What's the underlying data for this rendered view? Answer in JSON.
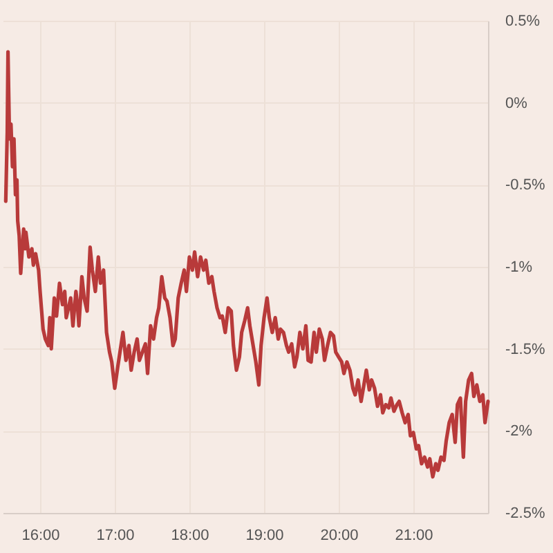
{
  "chart_data": {
    "type": "line",
    "x": [
      15.54,
      15.56,
      15.57,
      15.59,
      15.61,
      15.63,
      15.65,
      15.67,
      15.69,
      15.7,
      15.72,
      15.74,
      15.78,
      15.8,
      15.81,
      15.85,
      15.89,
      15.91,
      15.94,
      15.98,
      16.0,
      16.04,
      16.07,
      16.11,
      16.13,
      16.15,
      16.19,
      16.22,
      16.26,
      16.3,
      16.33,
      16.35,
      16.39,
      16.41,
      16.44,
      16.48,
      16.5,
      16.52,
      16.56,
      16.59,
      16.63,
      16.67,
      16.7,
      16.74,
      16.78,
      16.81,
      16.85,
      16.89,
      16.93,
      16.96,
      17.0,
      17.04,
      17.07,
      17.11,
      17.15,
      17.19,
      17.22,
      17.26,
      17.3,
      17.33,
      17.37,
      17.41,
      17.44,
      17.48,
      17.52,
      17.56,
      17.59,
      17.63,
      17.67,
      17.7,
      17.74,
      17.78,
      17.81,
      17.85,
      17.89,
      17.93,
      17.96,
      18.0,
      18.04,
      18.07,
      18.11,
      18.15,
      18.19,
      18.22,
      18.26,
      18.3,
      18.33,
      18.37,
      18.41,
      18.44,
      18.48,
      18.52,
      18.56,
      18.59,
      18.63,
      18.67,
      18.7,
      18.74,
      18.78,
      18.81,
      18.85,
      18.89,
      18.93,
      18.96,
      19.0,
      19.04,
      19.07,
      19.11,
      19.15,
      19.19,
      19.22,
      19.26,
      19.3,
      19.33,
      19.37,
      19.41,
      19.44,
      19.48,
      19.52,
      19.56,
      19.59,
      19.63,
      19.67,
      19.7,
      19.74,
      19.78,
      19.81,
      19.85,
      19.89,
      19.93,
      19.96,
      20.0,
      20.04,
      20.07,
      20.11,
      20.15,
      20.19,
      20.22,
      20.26,
      20.3,
      20.33,
      20.37,
      20.41,
      20.44,
      20.48,
      20.52,
      20.56,
      20.59,
      20.63,
      20.67,
      20.7,
      20.74,
      20.78,
      20.81,
      20.85,
      20.89,
      20.93,
      20.96,
      21.0,
      21.04,
      21.07,
      21.11,
      21.15,
      21.19,
      21.22,
      21.26,
      21.3,
      21.33,
      21.37,
      21.41,
      21.44,
      21.48,
      21.52,
      21.56,
      21.59,
      21.63,
      21.67,
      21.7,
      21.74,
      21.78,
      21.81,
      21.85,
      21.89,
      21.93,
      21.96,
      22.0
    ],
    "series": [
      {
        "color": "#b83a3a",
        "values": [
          -0.6,
          -0.18,
          0.31,
          -0.22,
          -0.13,
          -0.39,
          -0.22,
          -0.56,
          -0.47,
          -0.72,
          -0.81,
          -1.04,
          -0.77,
          -0.89,
          -0.79,
          -0.94,
          -0.89,
          -0.99,
          -0.92,
          -1.02,
          -1.15,
          -1.38,
          -1.44,
          -1.48,
          -1.31,
          -1.5,
          -1.19,
          -1.3,
          -1.1,
          -1.23,
          -1.15,
          -1.31,
          -1.23,
          -1.19,
          -1.36,
          -1.15,
          -1.23,
          -1.36,
          -1.06,
          -1.19,
          -1.27,
          -0.88,
          -1.02,
          -1.15,
          -0.94,
          -1.1,
          -1.02,
          -1.4,
          -1.52,
          -1.58,
          -1.74,
          -1.61,
          -1.52,
          -1.4,
          -1.57,
          -1.48,
          -1.63,
          -1.52,
          -1.44,
          -1.57,
          -1.52,
          -1.47,
          -1.65,
          -1.36,
          -1.44,
          -1.31,
          -1.25,
          -1.06,
          -1.19,
          -1.21,
          -1.31,
          -1.48,
          -1.44,
          -1.19,
          -1.1,
          -1.02,
          -1.15,
          -0.94,
          -1.02,
          -0.91,
          -1.06,
          -0.94,
          -1.02,
          -0.96,
          -1.1,
          -1.06,
          -1.15,
          -1.25,
          -1.31,
          -1.3,
          -1.4,
          -1.25,
          -1.27,
          -1.48,
          -1.63,
          -1.55,
          -1.4,
          -1.33,
          -1.25,
          -1.36,
          -1.47,
          -1.58,
          -1.72,
          -1.48,
          -1.31,
          -1.19,
          -1.31,
          -1.4,
          -1.31,
          -1.44,
          -1.38,
          -1.4,
          -1.48,
          -1.52,
          -1.47,
          -1.61,
          -1.55,
          -1.4,
          -1.5,
          -1.36,
          -1.57,
          -1.58,
          -1.4,
          -1.52,
          -1.38,
          -1.44,
          -1.57,
          -1.48,
          -1.4,
          -1.42,
          -1.52,
          -1.55,
          -1.58,
          -1.65,
          -1.58,
          -1.63,
          -1.74,
          -1.78,
          -1.69,
          -1.82,
          -1.74,
          -1.63,
          -1.75,
          -1.69,
          -1.74,
          -1.85,
          -1.78,
          -1.89,
          -1.84,
          -1.86,
          -1.8,
          -1.88,
          -1.84,
          -1.82,
          -1.89,
          -1.95,
          -1.9,
          -2.03,
          -2.01,
          -2.11,
          -2.09,
          -2.2,
          -2.16,
          -2.22,
          -2.17,
          -2.28,
          -2.2,
          -2.24,
          -2.16,
          -2.18,
          -2.06,
          -1.95,
          -1.9,
          -2.07,
          -1.84,
          -1.8,
          -2.16,
          -1.82,
          -1.69,
          -1.65,
          -1.79,
          -1.72,
          -1.82,
          -1.78,
          -1.95,
          -1.82
        ]
      }
    ],
    "xlim": [
      15.5,
      22.0
    ],
    "xticks": [
      {
        "value": 16,
        "label": "16:00"
      },
      {
        "value": 17,
        "label": "17:00"
      },
      {
        "value": 18,
        "label": "18:00"
      },
      {
        "value": 19,
        "label": "19:00"
      },
      {
        "value": 20,
        "label": "20:00"
      },
      {
        "value": 21,
        "label": "21:00"
      }
    ],
    "ylim": [
      -2.5,
      0.5
    ],
    "yticks": [
      {
        "value": 0.5,
        "label": "0.5%"
      },
      {
        "value": 0,
        "label": "0%"
      },
      {
        "value": -0.5,
        "label": "-0.5%"
      },
      {
        "value": -1,
        "label": "-1%"
      },
      {
        "value": -1.5,
        "label": "-1.5%"
      },
      {
        "value": -2,
        "label": "-2%"
      },
      {
        "value": -2.5,
        "label": "-2.5%"
      }
    ],
    "grid": true
  }
}
